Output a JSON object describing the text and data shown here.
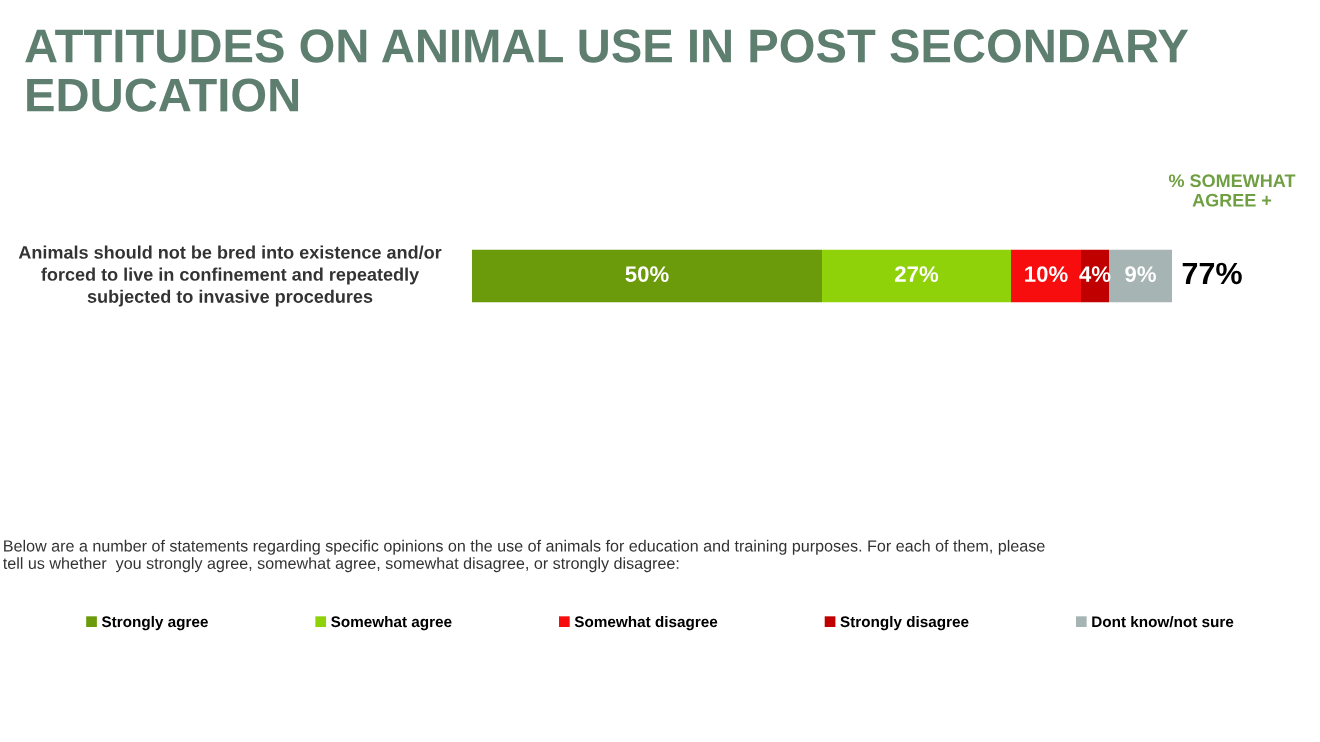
{
  "chart_data": {
    "type": "bar",
    "orientation": "horizontal",
    "stacked": true,
    "xlim": [
      0,
      100
    ],
    "title": "ATTITUDES ON ANIMAL USE IN POST SECONDARY EDUCATION",
    "categories": [
      "Animals should not be bred into existence and/or forced to live in confinement and repeatedly subjected to invasive procedures"
    ],
    "series": [
      {
        "name": "Strongly agree",
        "color": "#6b9a0b",
        "values": [
          50
        ],
        "value_labels": [
          "50%"
        ]
      },
      {
        "name": "Somewhat agree",
        "color": "#90d20a",
        "values": [
          27
        ],
        "value_labels": [
          "27%"
        ]
      },
      {
        "name": "Somewhat disagree",
        "color": "#f70d0d",
        "values": [
          10
        ],
        "value_labels": [
          "10%"
        ]
      },
      {
        "name": "Strongly disagree",
        "color": "#c00000",
        "values": [
          4
        ],
        "value_labels": [
          "4%"
        ]
      },
      {
        "name": "Dont know/not sure",
        "color": "#a7b4b4",
        "values": [
          9
        ],
        "value_labels": [
          "9%"
        ]
      }
    ],
    "annotations": [
      "% SOMEWHAT AGREE +",
      "77%",
      "Below are a number of statements regarding specific opinions on the use of animals for education and training purposes. For each of them, please tell us whether  you strongly agree, somewhat agree, somewhat disagree, or strongly disagree:"
    ],
    "legend": "bottom"
  }
}
